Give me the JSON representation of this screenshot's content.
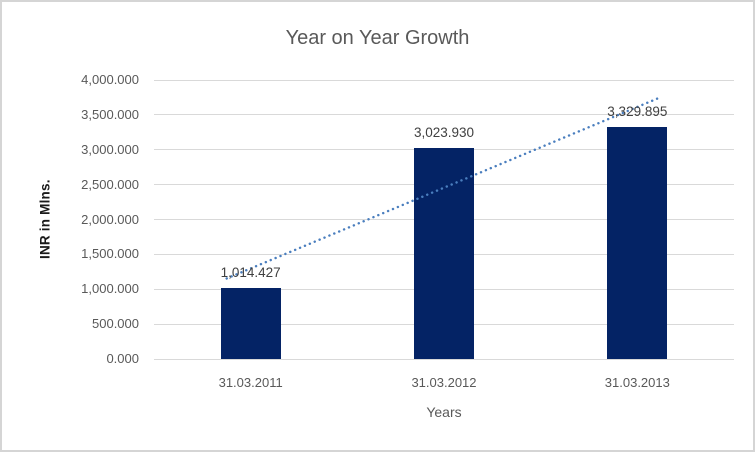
{
  "chart_data": {
    "type": "bar",
    "title": "Year on Year Growth",
    "categories": [
      "31.03.2011",
      "31.03.2012",
      "31.03.2013"
    ],
    "values": [
      1014.427,
      3023.93,
      3329.895
    ],
    "data_labels": [
      "1,014.427",
      "3,023.930",
      "3,329.895"
    ],
    "xlabel": "Years",
    "ylabel": "INR in Mlns.",
    "ylim": [
      0,
      4000
    ],
    "y_tick_step": 500,
    "y_tick_labels": [
      "0.000",
      "500.000",
      "1,000.000",
      "1,500.000",
      "2,000.000",
      "2,500.000",
      "3,000.000",
      "3,500.000",
      "4,000.000"
    ],
    "grid": true,
    "legend": "none",
    "trendline": {
      "type": "linear",
      "style": "dotted"
    }
  },
  "colors": {
    "bar": "#042365",
    "trendline": "#4A7EBE",
    "gridline": "#D9D9D9",
    "title_text": "#595959",
    "tick_text": "#595959",
    "data_label_text": "#404040",
    "axis_title_text": "#595959",
    "y_axis_title_text": "#1A1A1A",
    "border": "#D5D5D5",
    "background": "#FFFFFF"
  }
}
